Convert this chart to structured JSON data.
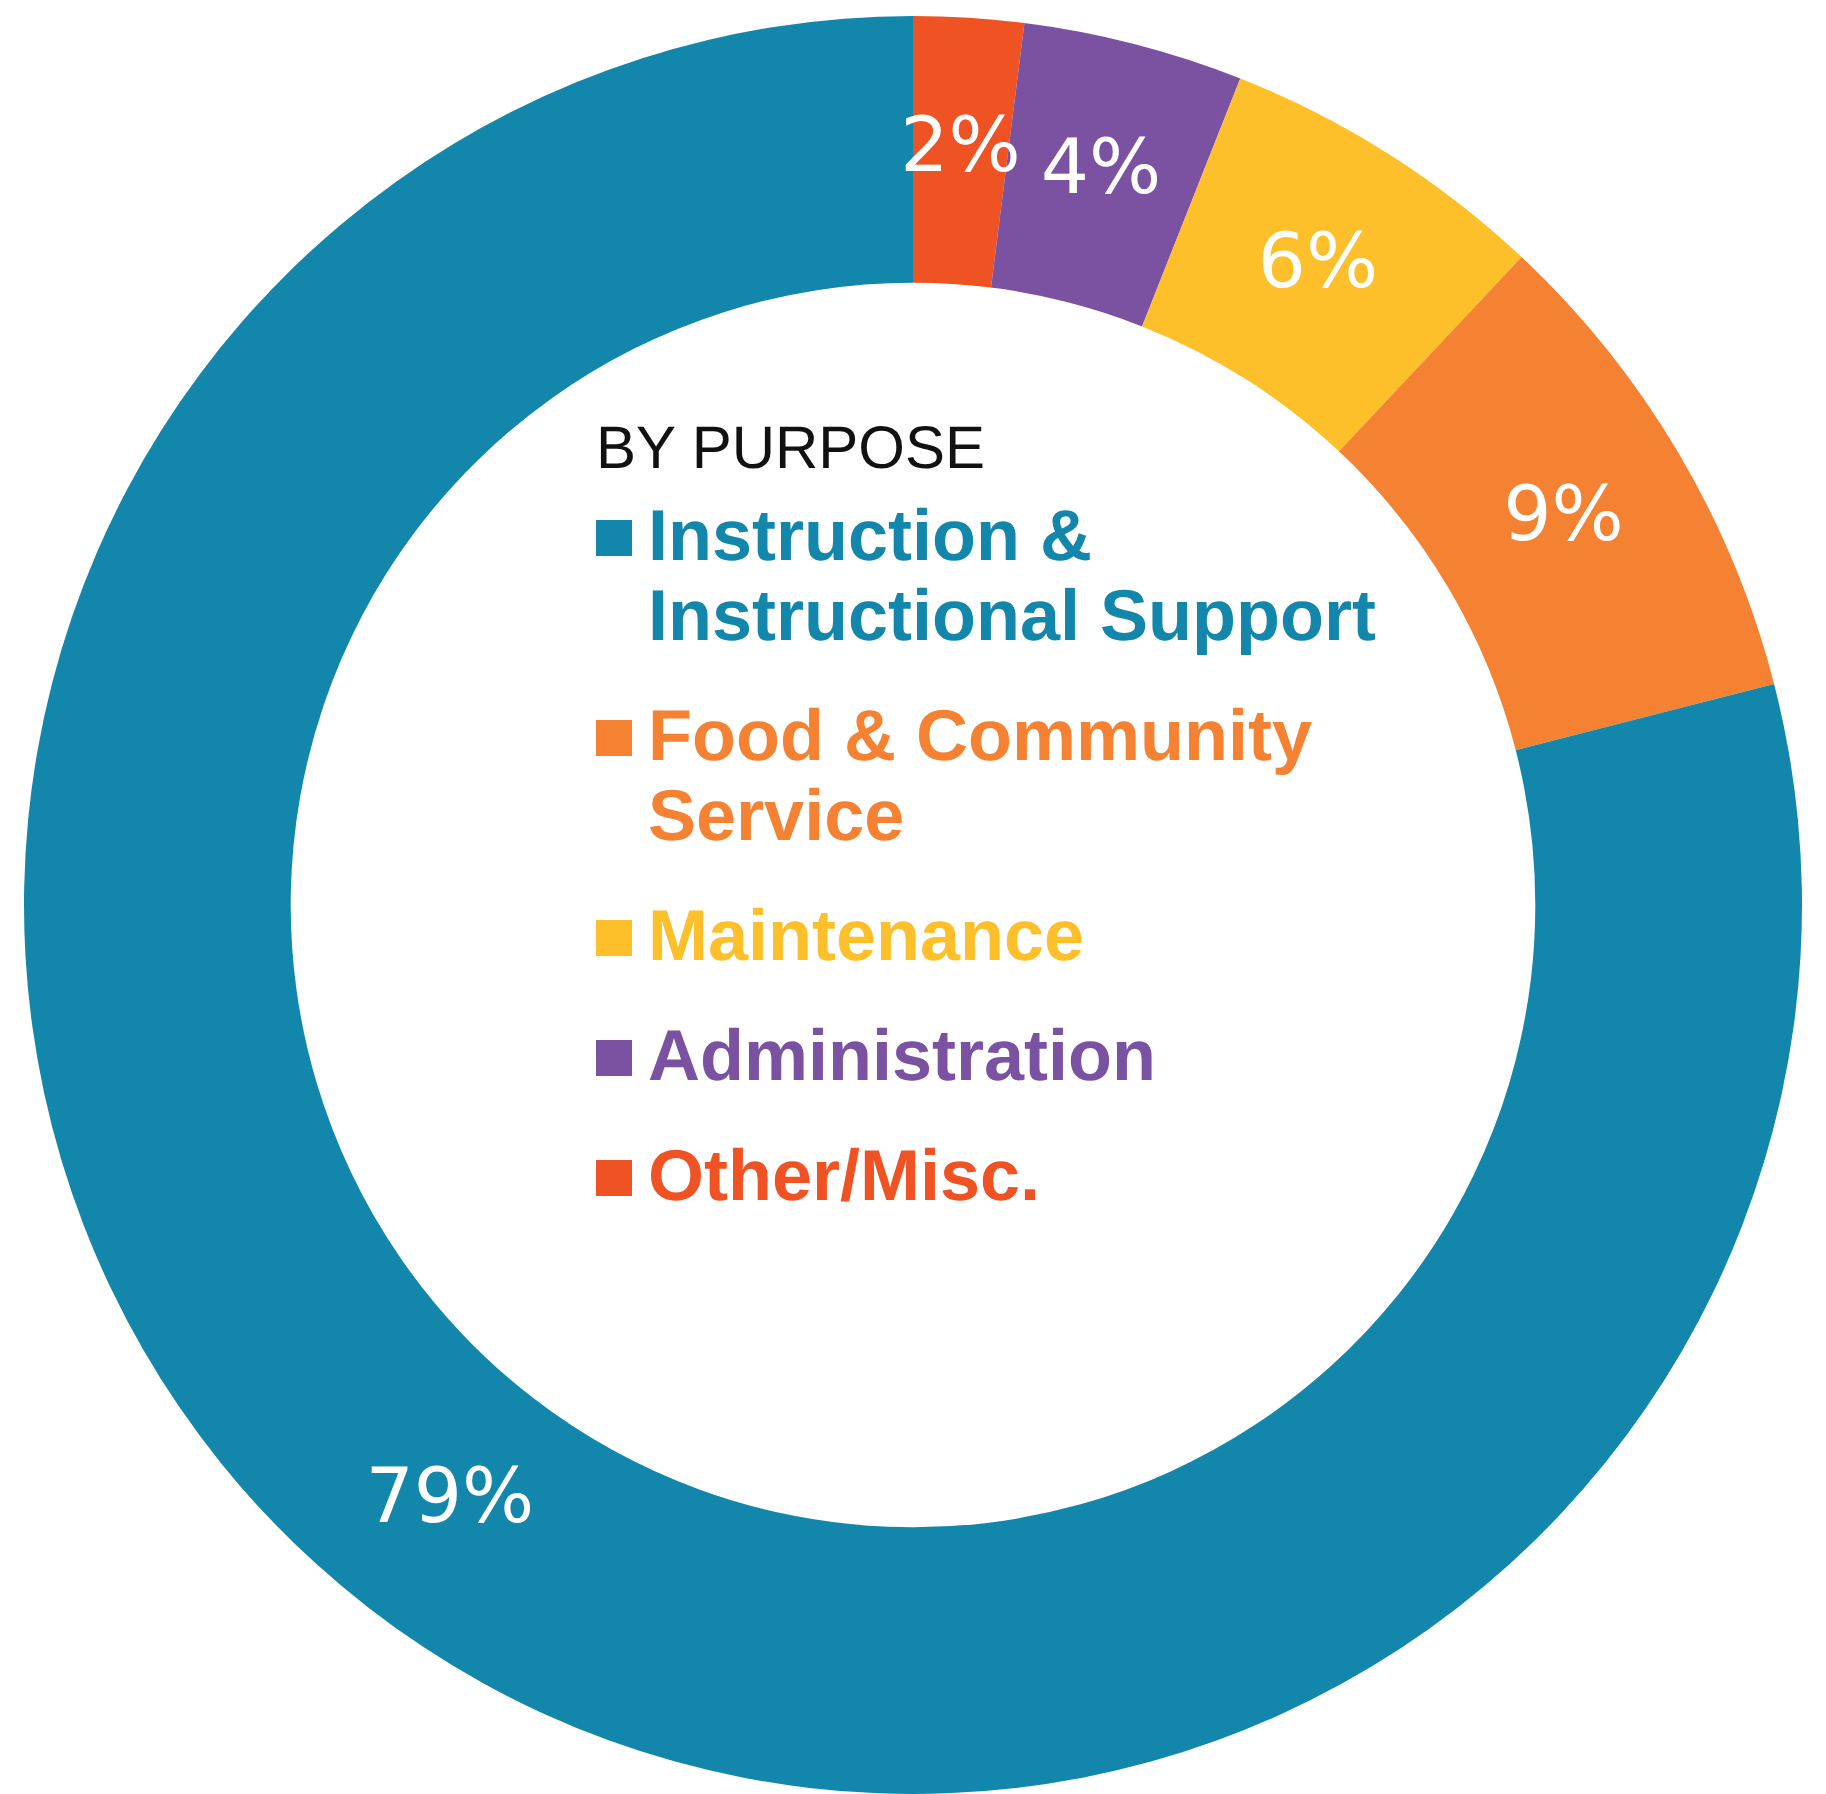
{
  "chart_data": {
    "type": "donut",
    "legend_title": "BY PURPOSE",
    "legend": "center",
    "categories": [
      "Other/Misc.",
      "Administration",
      "Maintenance",
      "Food & Community Service",
      "Instruction & Instructional Support"
    ],
    "values": [
      2,
      4,
      6,
      9,
      79
    ],
    "colors": [
      "#ef5323",
      "#7b52a1",
      "#fdc02a",
      "#f58233",
      "#1387ab"
    ],
    "value_labels": [
      "2%",
      "4%",
      "6%",
      "9%",
      "79%"
    ]
  }
}
